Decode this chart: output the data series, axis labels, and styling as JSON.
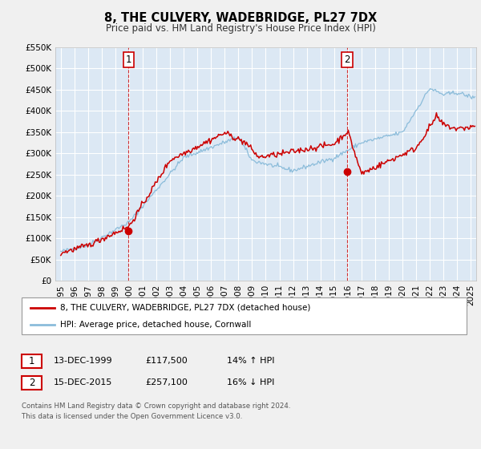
{
  "title": "8, THE CULVERY, WADEBRIDGE, PL27 7DX",
  "subtitle": "Price paid vs. HM Land Registry's House Price Index (HPI)",
  "bg_color": "#f0f0f0",
  "plot_bg_color": "#dce8f4",
  "grid_color": "#ffffff",
  "ylim": [
    0,
    550000
  ],
  "yticks": [
    0,
    50000,
    100000,
    150000,
    200000,
    250000,
    300000,
    350000,
    400000,
    450000,
    500000,
    550000
  ],
  "ytick_labels": [
    "£0",
    "£50K",
    "£100K",
    "£150K",
    "£200K",
    "£250K",
    "£300K",
    "£350K",
    "£400K",
    "£450K",
    "£500K",
    "£550K"
  ],
  "xlim_start": 1994.6,
  "xlim_end": 2025.4,
  "xticks": [
    1995,
    1996,
    1997,
    1998,
    1999,
    2000,
    2001,
    2002,
    2003,
    2004,
    2005,
    2006,
    2007,
    2008,
    2009,
    2010,
    2011,
    2012,
    2013,
    2014,
    2015,
    2016,
    2017,
    2018,
    2019,
    2020,
    2021,
    2022,
    2023,
    2024,
    2025
  ],
  "sale1_x": 1999.96,
  "sale1_y": 117500,
  "sale1_label": "1",
  "sale1_date": "13-DEC-1999",
  "sale1_price": "£117,500",
  "sale1_hpi": "14% ↑ HPI",
  "sale2_x": 2015.96,
  "sale2_y": 257100,
  "sale2_label": "2",
  "sale2_date": "15-DEC-2015",
  "sale2_price": "£257,100",
  "sale2_hpi": "16% ↓ HPI",
  "property_color": "#cc0000",
  "hpi_color": "#8bbcda",
  "legend_label1": "8, THE CULVERY, WADEBRIDGE, PL27 7DX (detached house)",
  "legend_label2": "HPI: Average price, detached house, Cornwall",
  "footnote1": "Contains HM Land Registry data © Crown copyright and database right 2024.",
  "footnote2": "This data is licensed under the Open Government Licence v3.0."
}
